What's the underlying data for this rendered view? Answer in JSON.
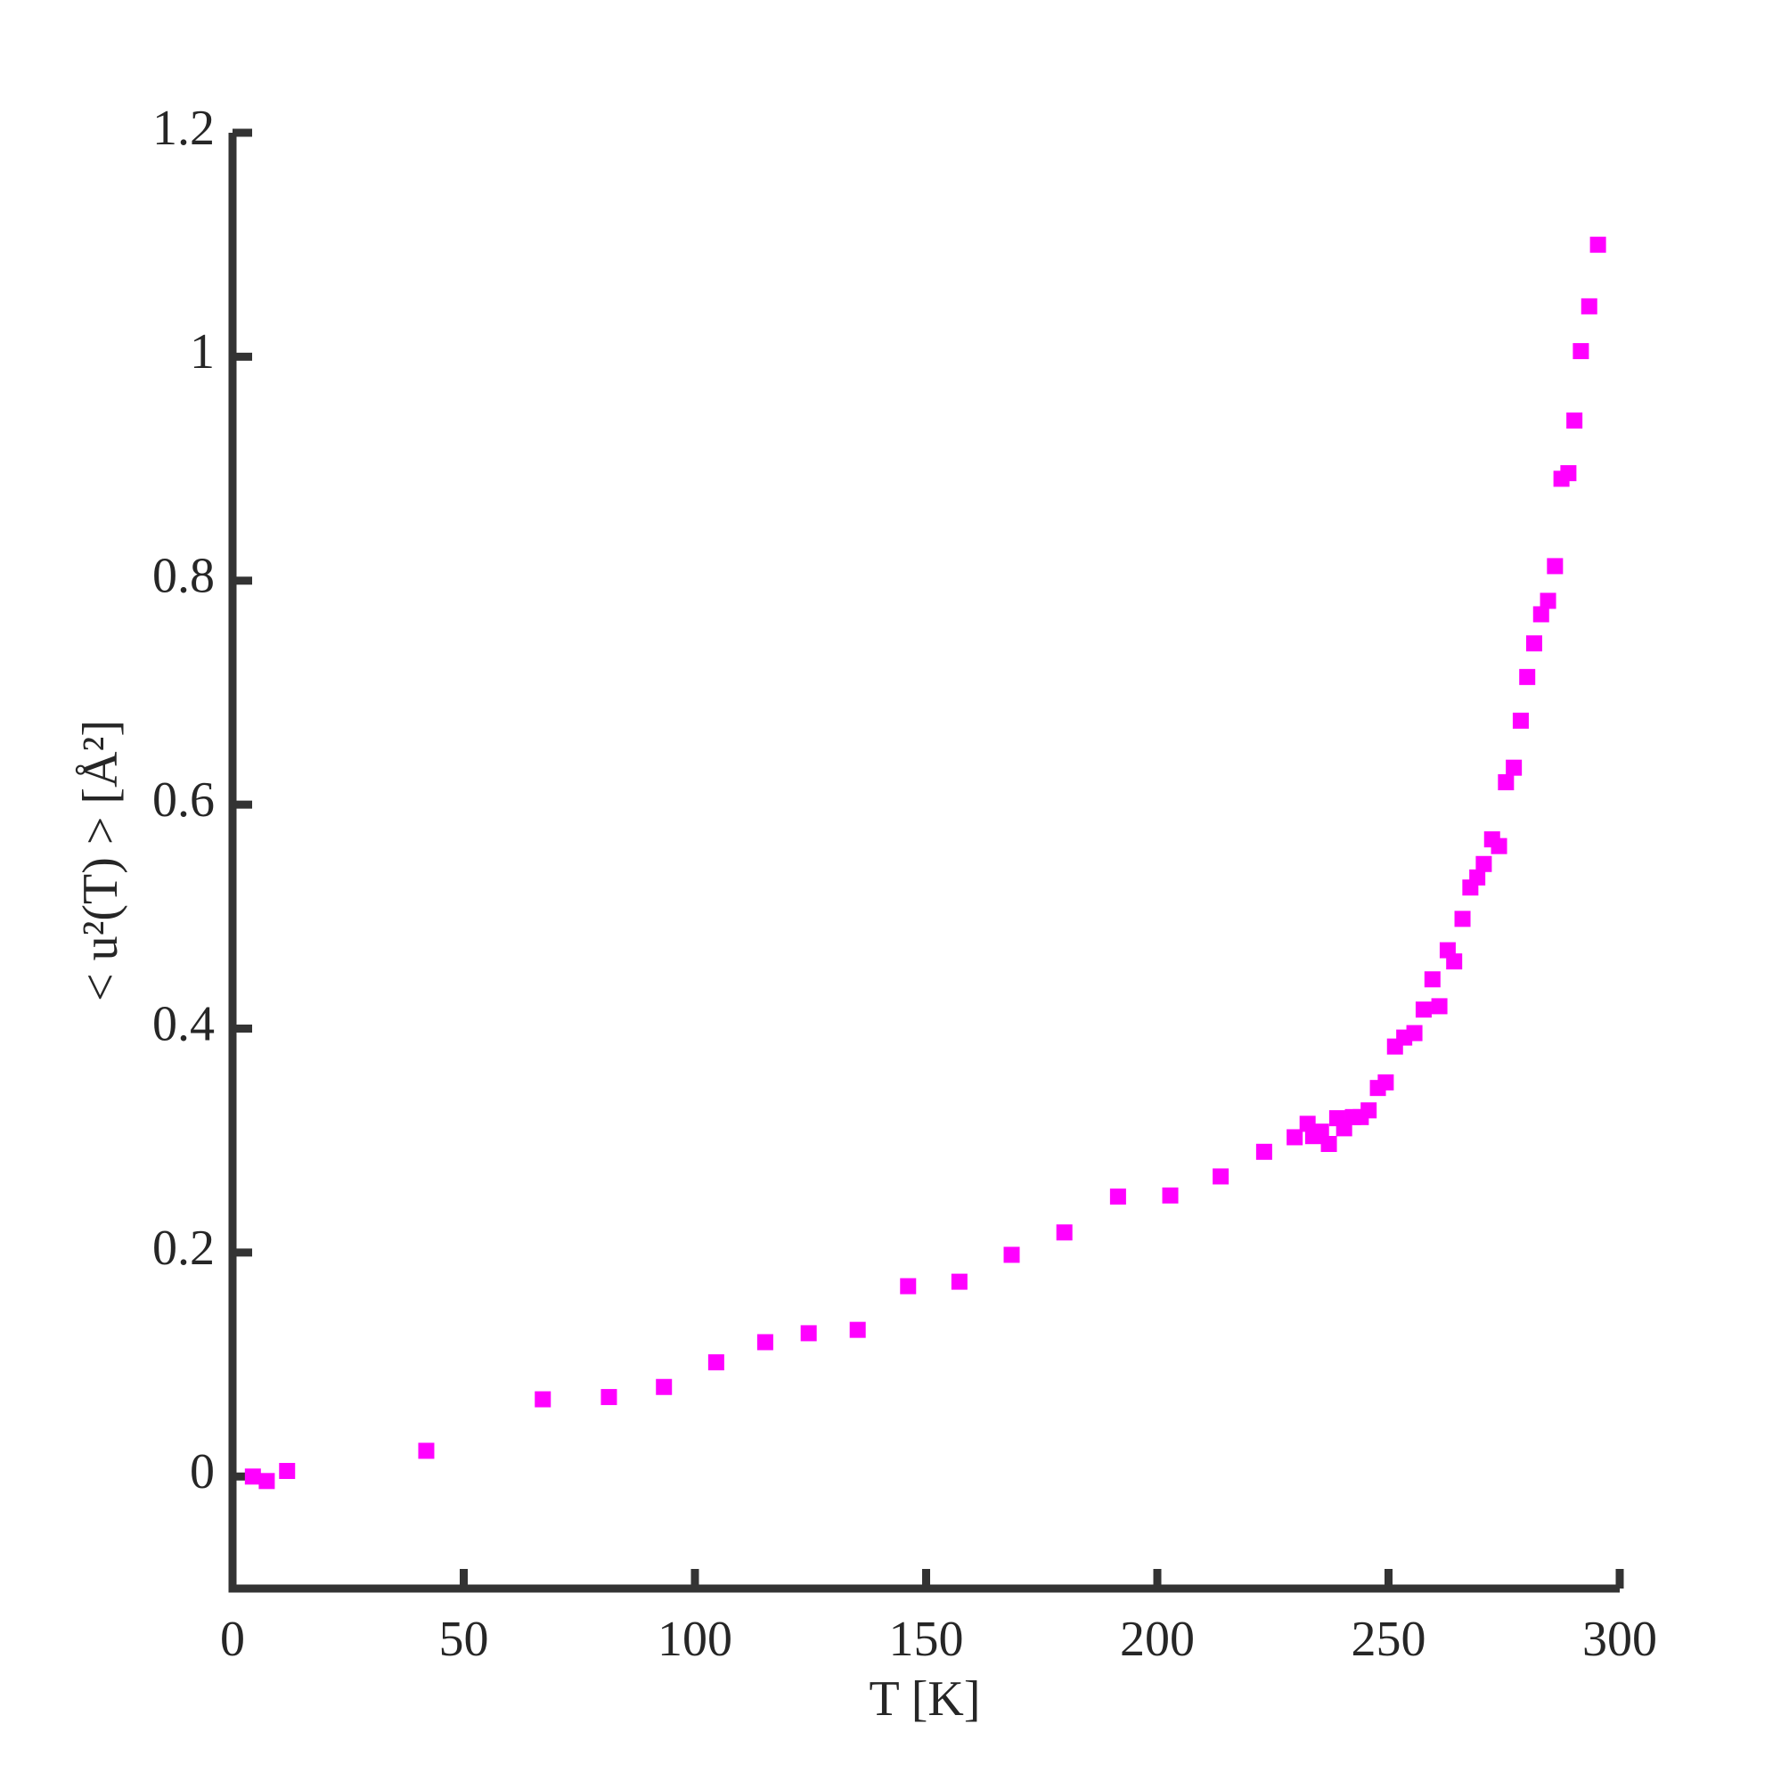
{
  "chart_data": {
    "type": "scatter",
    "xlabel": "T [K]",
    "ylabel": "< u²(T) > [Å²]",
    "xlim": [
      0,
      300
    ],
    "ylim": [
      -0.1,
      1.2
    ],
    "xticks": [
      0,
      50,
      100,
      150,
      200,
      250,
      300
    ],
    "yticks": [
      0,
      0.2,
      0.4,
      0.6,
      0.8,
      1,
      1.2
    ],
    "series": [
      {
        "color": "#ff00ff",
        "x": [
          4.4,
          7.4,
          11.8,
          41.9,
          67.1,
          81.4,
          93.3,
          104.6,
          115.2,
          124.6,
          135.2,
          146.1,
          157.2,
          168.5,
          179.9,
          191.5,
          202.8,
          213.7,
          223.1,
          229.7,
          232.5,
          233.7,
          235.4,
          237.1,
          238.9,
          240.4,
          242.3,
          244.0,
          245.7,
          247.7,
          249.4,
          251.4,
          253.4,
          255.6,
          257.6,
          259.5,
          261.0,
          262.8,
          264.2,
          266.0,
          267.7,
          269.2,
          270.6,
          272.4,
          273.9,
          275.4,
          277.1,
          278.6,
          280.0,
          281.5,
          283.0,
          284.5,
          286.0,
          287.4,
          288.9,
          290.2,
          291.6,
          293.4,
          295.3
        ],
        "values": [
          0,
          -0.004,
          0.005,
          0.023,
          0.069,
          0.071,
          0.08,
          0.102,
          0.12,
          0.128,
          0.131,
          0.17,
          0.174,
          0.198,
          0.218,
          0.25,
          0.251,
          0.268,
          0.29,
          0.303,
          0.315,
          0.304,
          0.308,
          0.297,
          0.32,
          0.311,
          0.321,
          0.321,
          0.327,
          0.347,
          0.352,
          0.384,
          0.392,
          0.396,
          0.417,
          0.444,
          0.42,
          0.47,
          0.46,
          0.498,
          0.526,
          0.535,
          0.547,
          0.569,
          0.563,
          0.62,
          0.633,
          0.675,
          0.714,
          0.744,
          0.77,
          0.782,
          0.813,
          0.891,
          0.896,
          0.943,
          1.005,
          1.045,
          1.1
        ]
      }
    ]
  }
}
